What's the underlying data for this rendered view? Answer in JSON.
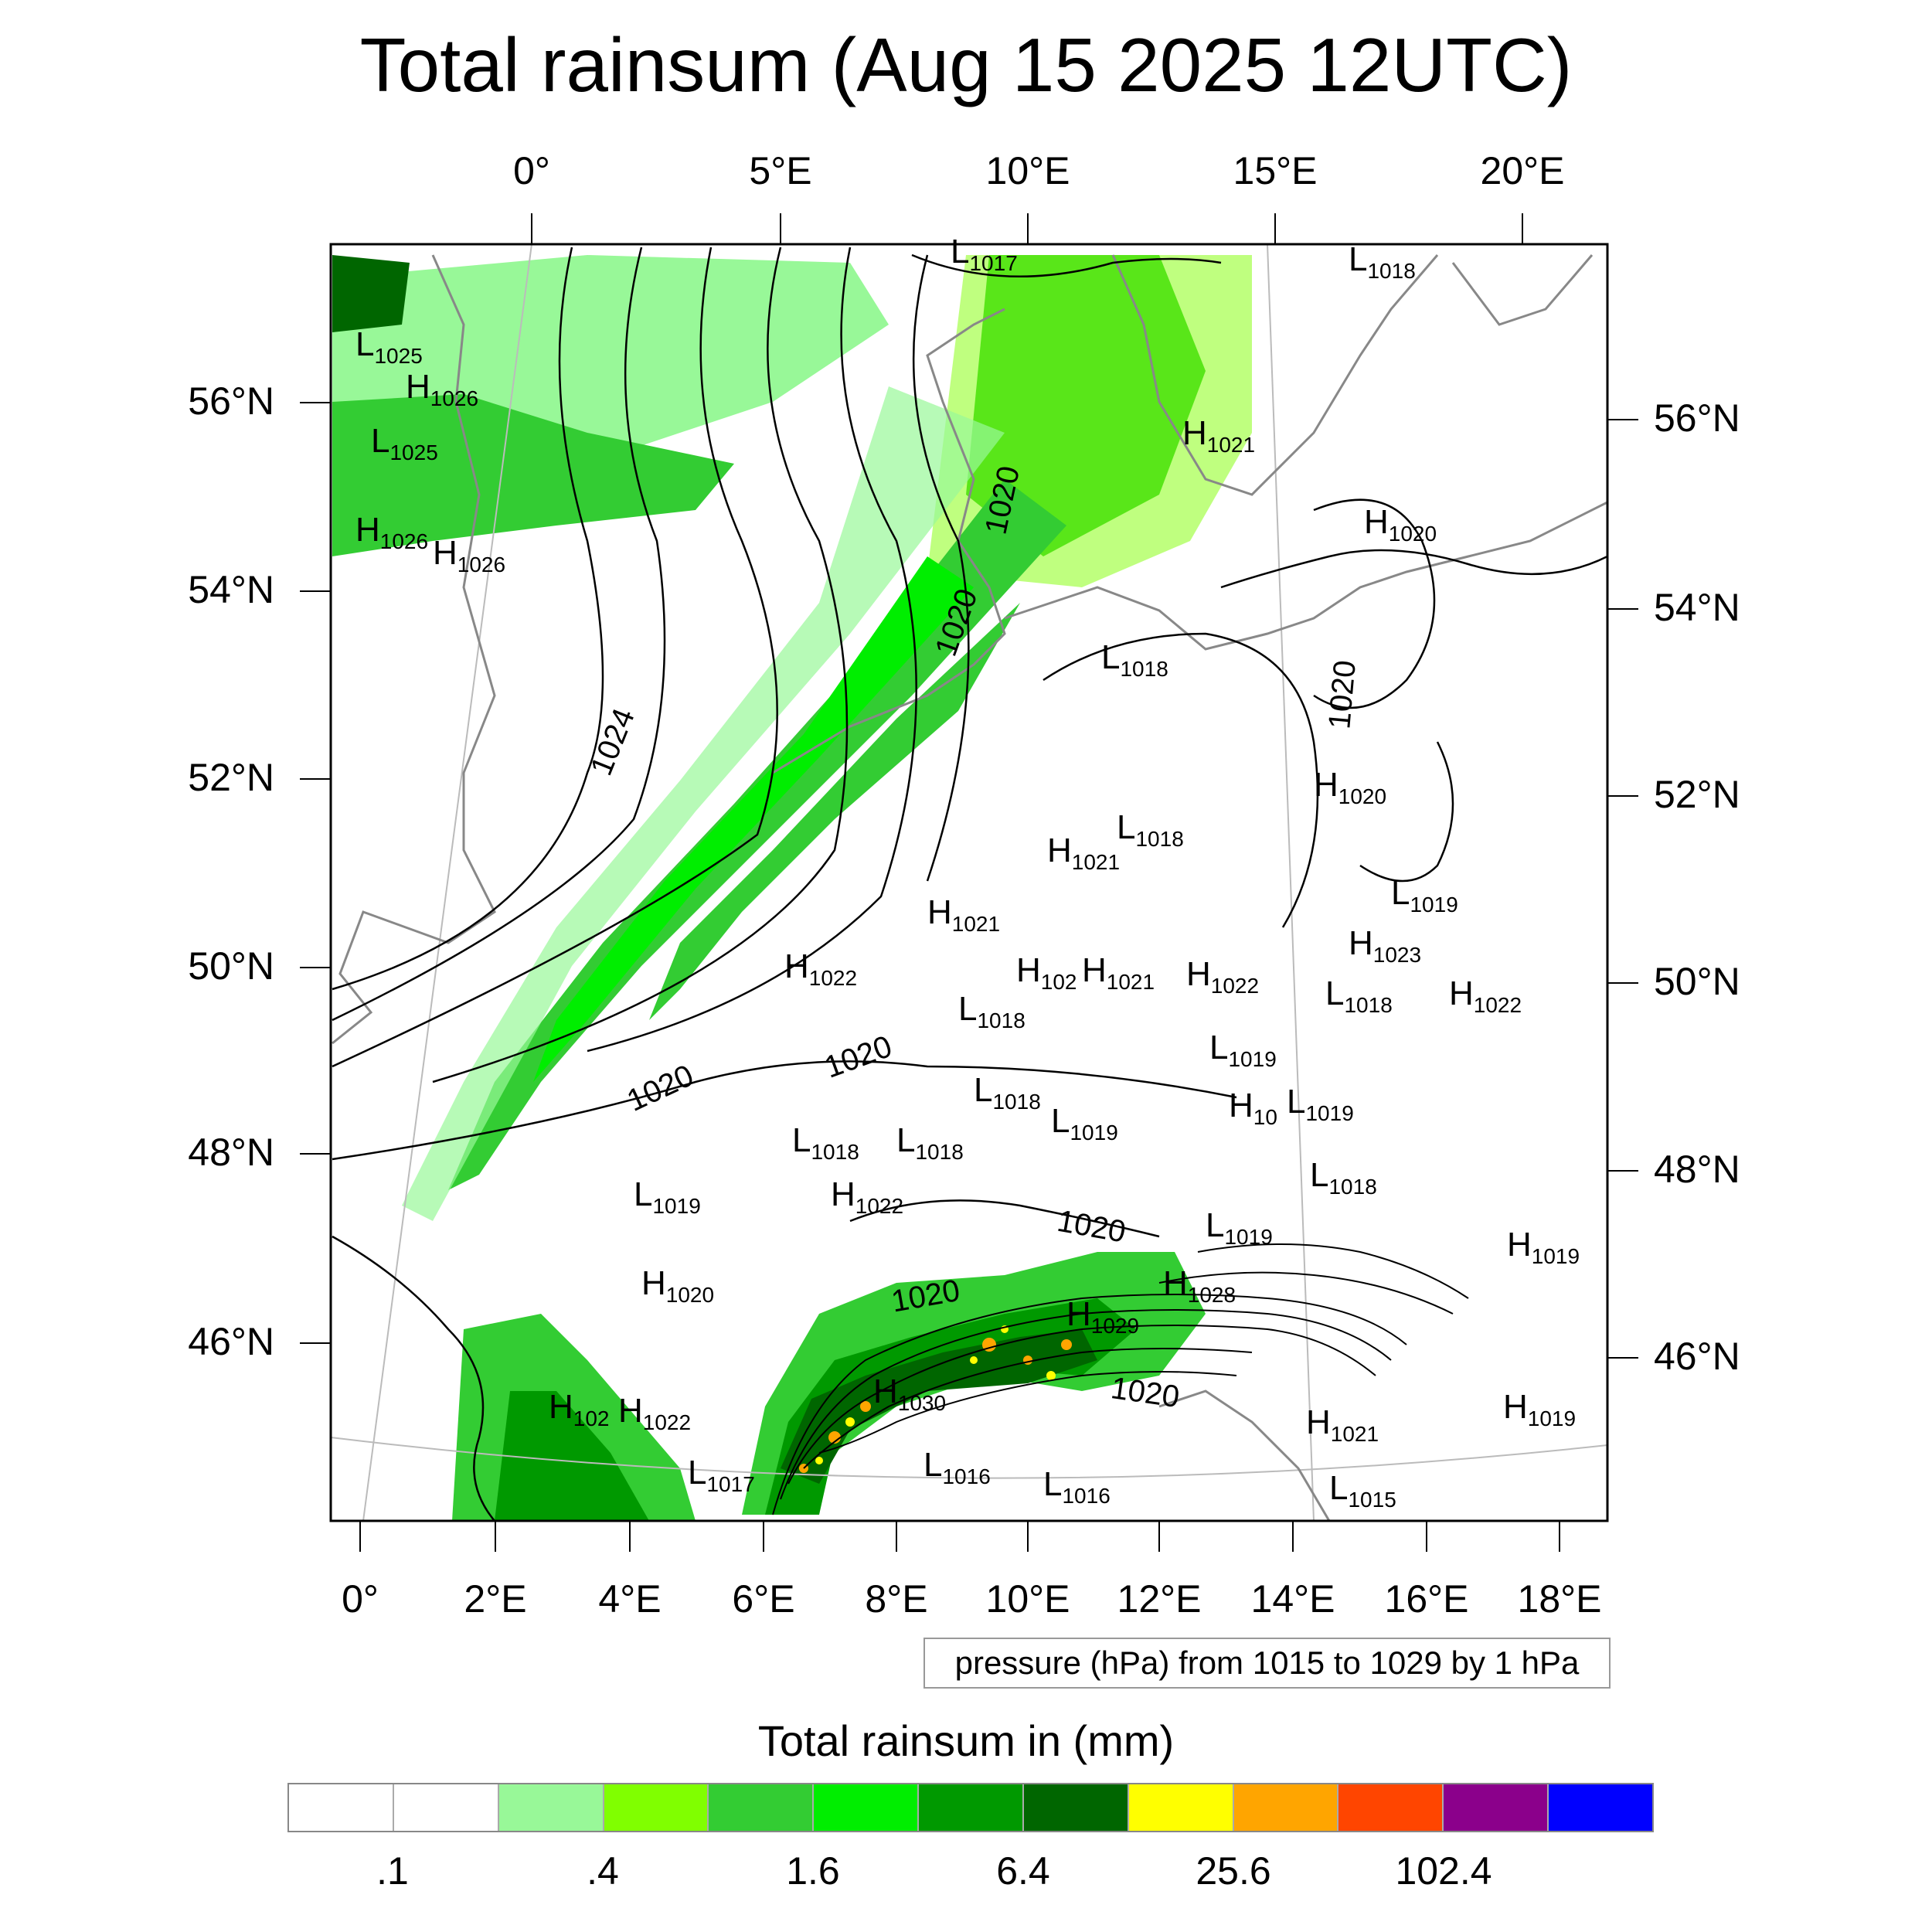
{
  "title": "Total rainsum (Aug 15 2025 12UTC)",
  "top_lon_labels": [
    "0°",
    "5°E",
    "10°E",
    "15°E",
    "20°E"
  ],
  "bottom_lon_labels": [
    "0°",
    "2°E",
    "4°E",
    "6°E",
    "8°E",
    "10°E",
    "12°E",
    "14°E",
    "16°E",
    "18°E"
  ],
  "left_lat_labels": [
    "56°N",
    "54°N",
    "52°N",
    "50°N",
    "48°N",
    "46°N"
  ],
  "right_lat_labels": [
    "56°N",
    "54°N",
    "52°N",
    "50°N",
    "48°N",
    "46°N"
  ],
  "pressure_info": "pressure (hPa) from 1015 to 1029 by 1 hPa",
  "legend": {
    "title": "Total rainsum in (mm)",
    "colors": [
      "#ffffff",
      "#ffffff",
      "#98f898",
      "#80ff00",
      "#33cc33",
      "#00ee00",
      "#009900",
      "#006600",
      "#ffff00",
      "#ffa500",
      "#ff4500",
      "#8b008b",
      "#0000ff"
    ],
    "labels": [
      ".1",
      ".4",
      "1.6",
      "6.4",
      "25.6",
      "102.4"
    ]
  },
  "pressure_centers": [
    {
      "t": "L",
      "v": "1017"
    },
    {
      "t": "L",
      "v": "1018"
    },
    {
      "t": "L",
      "v": "1025"
    },
    {
      "t": "H",
      "v": "1026"
    },
    {
      "t": "L",
      "v": "1025"
    },
    {
      "t": "H",
      "v": "1021"
    },
    {
      "t": "H",
      "v": "1020"
    },
    {
      "t": "H",
      "v": "1026"
    },
    {
      "t": "H",
      "v": "1026"
    },
    {
      "t": "L",
      "v": "1018"
    },
    {
      "t": "H",
      "v": "1020"
    },
    {
      "t": "L",
      "v": "1018"
    },
    {
      "t": "H",
      "v": "1021"
    },
    {
      "t": "L",
      "v": "1019"
    },
    {
      "t": "H",
      "v": "1021"
    },
    {
      "t": "H",
      "v": "1023"
    },
    {
      "t": "H",
      "v": "1022"
    },
    {
      "t": "H",
      "v": "102"
    },
    {
      "t": "H",
      "v": "1021"
    },
    {
      "t": "H",
      "v": "1022"
    },
    {
      "t": "L",
      "v": "1018"
    },
    {
      "t": "H",
      "v": "1022"
    },
    {
      "t": "L",
      "v": "1018"
    },
    {
      "t": "L",
      "v": "1019"
    },
    {
      "t": "L",
      "v": "1018"
    },
    {
      "t": "H",
      "v": "10"
    },
    {
      "t": "L",
      "v": "1019"
    },
    {
      "t": "L",
      "v": "1019"
    },
    {
      "t": "L",
      "v": "1018"
    },
    {
      "t": "L",
      "v": "1018"
    },
    {
      "t": "L",
      "v": "1018"
    },
    {
      "t": "L",
      "v": "1019"
    },
    {
      "t": "H",
      "v": "1022"
    },
    {
      "t": "L",
      "v": "1019"
    },
    {
      "t": "H",
      "v": "1019"
    },
    {
      "t": "H",
      "v": "1020"
    },
    {
      "t": "H",
      "v": "1028"
    },
    {
      "t": "H",
      "v": "1029"
    },
    {
      "t": "H",
      "v": "1030"
    },
    {
      "t": "H",
      "v": "102"
    },
    {
      "t": "H",
      "v": "1022"
    },
    {
      "t": "H",
      "v": "1021"
    },
    {
      "t": "H",
      "v": "1019"
    },
    {
      "t": "L",
      "v": "1017"
    },
    {
      "t": "L",
      "v": "1016"
    },
    {
      "t": "L",
      "v": "1016"
    },
    {
      "t": "L",
      "v": "1015"
    }
  ],
  "isobar_labels": [
    "1024",
    "1020",
    "1020",
    "1020",
    "1020",
    "1020",
    "1020",
    "1020",
    "1020"
  ]
}
